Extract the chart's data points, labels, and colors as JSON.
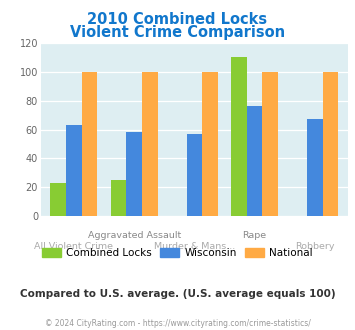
{
  "title_line1": "2010 Combined Locks",
  "title_line2": "Violent Crime Comparison",
  "categories": [
    "All Violent Crime",
    "Aggravated Assault",
    "Murder & Mans...",
    "Rape",
    "Robbery"
  ],
  "combined_locks": [
    23,
    25,
    0,
    110,
    0
  ],
  "wisconsin": [
    63,
    58,
    57,
    76,
    67
  ],
  "national": [
    100,
    100,
    100,
    100,
    100
  ],
  "colors": {
    "combined_locks": "#88cc33",
    "wisconsin": "#4488dd",
    "national": "#ffaa44"
  },
  "ylim": [
    0,
    120
  ],
  "yticks": [
    0,
    20,
    40,
    60,
    80,
    100,
    120
  ],
  "background_color": "#deeef2",
  "title_color": "#1177cc",
  "footer_note": "Compared to U.S. average. (U.S. average equals 100)",
  "footer_copy": "© 2024 CityRating.com - https://www.cityrating.com/crime-statistics/",
  "legend_labels": [
    "Combined Locks",
    "Wisconsin",
    "National"
  ],
  "x_top_labels": [
    "",
    "Aggravated Assault",
    "",
    "Rape",
    ""
  ],
  "x_bot_labels": [
    "All Violent Crime",
    "",
    "Murder & Mans...",
    "",
    "Robbery"
  ]
}
